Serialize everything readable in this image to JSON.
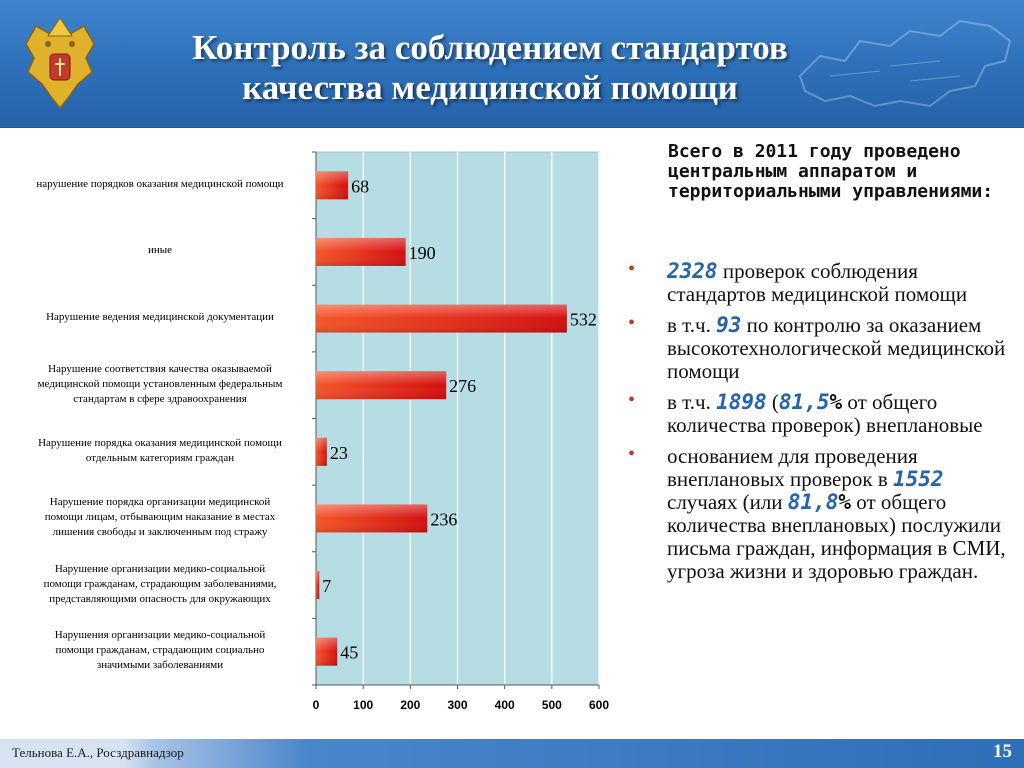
{
  "header": {
    "title_line1": "Контроль за соблюдением стандартов",
    "title_line2": "качества медицинской помощи"
  },
  "chart_data": {
    "type": "bar",
    "orientation": "horizontal",
    "categories": [
      "нарушение порядков оказания медицинской помощи",
      "иные",
      "Нарушение ведения медицинской документации",
      "Нарушение соответствия качества оказываемой медицинской помощи установленным федеральным стандартам в сфере здравоохранения",
      "Нарушение порядка оказания медицинской помощи отдельным категориям граждан",
      "Нарушение порядка организации медицинской помощи лицам, отбывающим наказание в местах лишения свободы и заключенным под стражу",
      "Нарушение организации медико-социальной помощи гражданам, страдающим заболеваниями, представляющими опасность для окружающих",
      "Нарушения организации медико-социальной помощи гражданам, страдающим социально значимыми заболеваниями"
    ],
    "category_lines": [
      [
        "нарушение порядков оказания медицинской помощи"
      ],
      [
        "иные"
      ],
      [
        "Нарушение ведения медицинской документации"
      ],
      [
        "Нарушение соответствия качества оказываемой",
        "медицинской помощи установленным федеральным",
        "стандартам в сфере здравоохранения"
      ],
      [
        "Нарушение порядка оказания медицинской помощи",
        "отдельным категориям граждан"
      ],
      [
        "Нарушение порядка организации медицинской",
        "помощи лицам, отбывающим наказание в местах",
        "лишения свободы и заключенным под стражу"
      ],
      [
        "Нарушение организации медико-социальной",
        "помощи гражданам, страдающим заболеваниями,",
        "представляющими опасность для окружающих"
      ],
      [
        "Нарушения организации медико-социальной",
        "помощи гражданам, страдающим социально",
        "значимыми заболеваниями"
      ]
    ],
    "values": [
      68,
      190,
      532,
      276,
      23,
      236,
      7,
      45
    ],
    "value_labels": [
      "68",
      "190",
      "532",
      "276",
      "23",
      "236",
      "7",
      "45"
    ],
    "xlim": [
      0,
      600
    ],
    "xticks": [
      "0",
      "100",
      "200",
      "300",
      "400",
      "500",
      "600"
    ],
    "grid": true,
    "legend": "none",
    "bar_color_start": "#f5552a",
    "bar_color_end": "#d40f0f",
    "plot_background": "#b6dde4"
  },
  "side": {
    "lead": "Всего в 2011 году проведено центральным аппаратом и территориальными управлениями:",
    "bullet1": {
      "num": "2328",
      "text": " проверок соблюдения стандартов медицинской помощи"
    },
    "bullet2": {
      "pre": "в т.ч. ",
      "num": "93",
      "text": " по контролю за оказанием высокотехнологической медицинской помощи"
    },
    "bullet3": {
      "pre": "в т.ч. ",
      "num": "1898",
      "mid": " (",
      "num2": "81,5",
      "pct": "%",
      "text": " от общего количества проверок) внеплановые"
    },
    "bullet4": {
      "pre": "основанием для проведения внеплановых проверок в ",
      "num": "1552",
      "mid": " случаях (или ",
      "num2": "81,8",
      "pct": "%",
      "text": " от общего количества внеплановых) послужили письма граждан, информация в СМИ, угроза жизни и здоровью граждан."
    }
  },
  "footer": {
    "author": "Тельнова Е.А., Росздравнадзор",
    "page": "15"
  }
}
